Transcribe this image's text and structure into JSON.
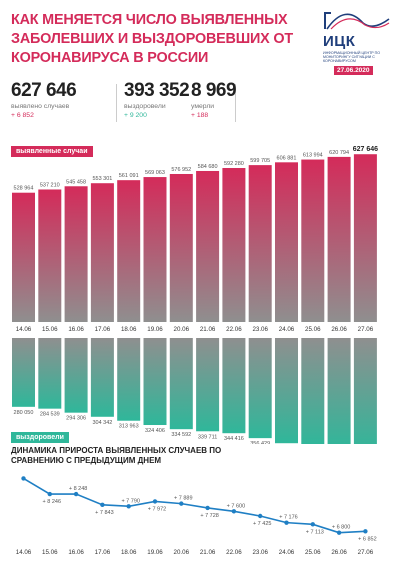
{
  "header": {
    "title": "КАК МЕНЯЕТСЯ ЧИСЛО ВЫЯВЛЕННЫХ ЗАБОЛЕВШИХ И ВЫЗДОРОВЕВШИХ ОТ КОРОНАВИРУСА В РОССИИ",
    "date": "27.06.2020"
  },
  "logo": {
    "name": "ИЦК",
    "subtitle": "ИНФОРМАЦИОННЫЙ ЦЕНТР ПО МОНИТОРИНГУ СИТУАЦИИ С КОРОНАВИРУСОМ"
  },
  "stats": [
    {
      "value": "627 646",
      "label": "выявлено случаев",
      "increase": "+ 6 852"
    },
    {
      "value": "393 352",
      "label": "выздоровели",
      "increase": "+ 9 200"
    },
    {
      "value": "8 969",
      "label": "умерли",
      "increase": "+ 188"
    }
  ],
  "colors": {
    "pink": "#d42b5a",
    "green": "#2fb79a",
    "grey": "#8f8f8f",
    "navy": "#1f3e7b",
    "line": "#1f7fc4"
  },
  "chart_data": [
    {
      "type": "bar",
      "title": "выявленные случаи",
      "categories": [
        "14.06",
        "15.06",
        "16.06",
        "17.06",
        "18.06",
        "19.06",
        "20.06",
        "21.06",
        "22.06",
        "23.06",
        "24.06",
        "25.06",
        "26.06",
        "27.06"
      ],
      "values": [
        528964,
        537210,
        545458,
        553301,
        561091,
        569063,
        576952,
        584680,
        592280,
        599705,
        606881,
        613994,
        620794,
        627646
      ],
      "value_labels": [
        "528 964",
        "537 210",
        "545 458",
        "553 301",
        "561 091",
        "569 063",
        "576 952",
        "584 680",
        "592 280",
        "599 705",
        "606 881",
        "613 994",
        "620 794",
        "627 646"
      ]
    },
    {
      "type": "bar",
      "title": "выздоровели",
      "categories": [
        "14.06",
        "15.06",
        "16.06",
        "17.06",
        "18.06",
        "19.06",
        "20.06",
        "21.06",
        "22.06",
        "23.06",
        "24.06",
        "25.06",
        "26.06",
        "27.06"
      ],
      "values": [
        280050,
        284539,
        294306,
        304342,
        313963,
        324406,
        334592,
        339711,
        344416,
        356429,
        368822,
        375164,
        384152,
        393352
      ],
      "value_labels": [
        "280 050",
        "284 539",
        "294 306",
        "304 342",
        "313 963",
        "324 406",
        "334 592",
        "339 711",
        "344 416",
        "356 429",
        "368 822",
        "375 164",
        "384 152",
        "393 352"
      ]
    },
    {
      "type": "line",
      "title": "ДИНАМИКА ПРИРОСТА ВЫЯВЛЕННЫХ СЛУЧАЕВ ПО СРАВНЕНИЮ С ПРЕДЫДУЩИМ ДНЕМ",
      "categories": [
        "14.06",
        "15.06",
        "16.06",
        "17.06",
        "18.06",
        "19.06",
        "20.06",
        "21.06",
        "22.06",
        "23.06",
        "24.06",
        "25.06",
        "26.06",
        "27.06"
      ],
      "values": [
        8835,
        8246,
        8248,
        7843,
        7790,
        7972,
        7889,
        7728,
        7600,
        7425,
        7176,
        7113,
        6800,
        6852
      ],
      "value_labels": [
        "",
        "+ 8 246",
        "+ 8 248",
        "+ 7 843",
        "+ 7 790",
        "+ 7 972",
        "+ 7 889",
        "+ 7 728",
        "+ 7 600",
        "+ 7 425",
        "+ 7 176",
        "+ 7 113",
        "+ 6 800",
        "+ 6 852"
      ]
    }
  ]
}
